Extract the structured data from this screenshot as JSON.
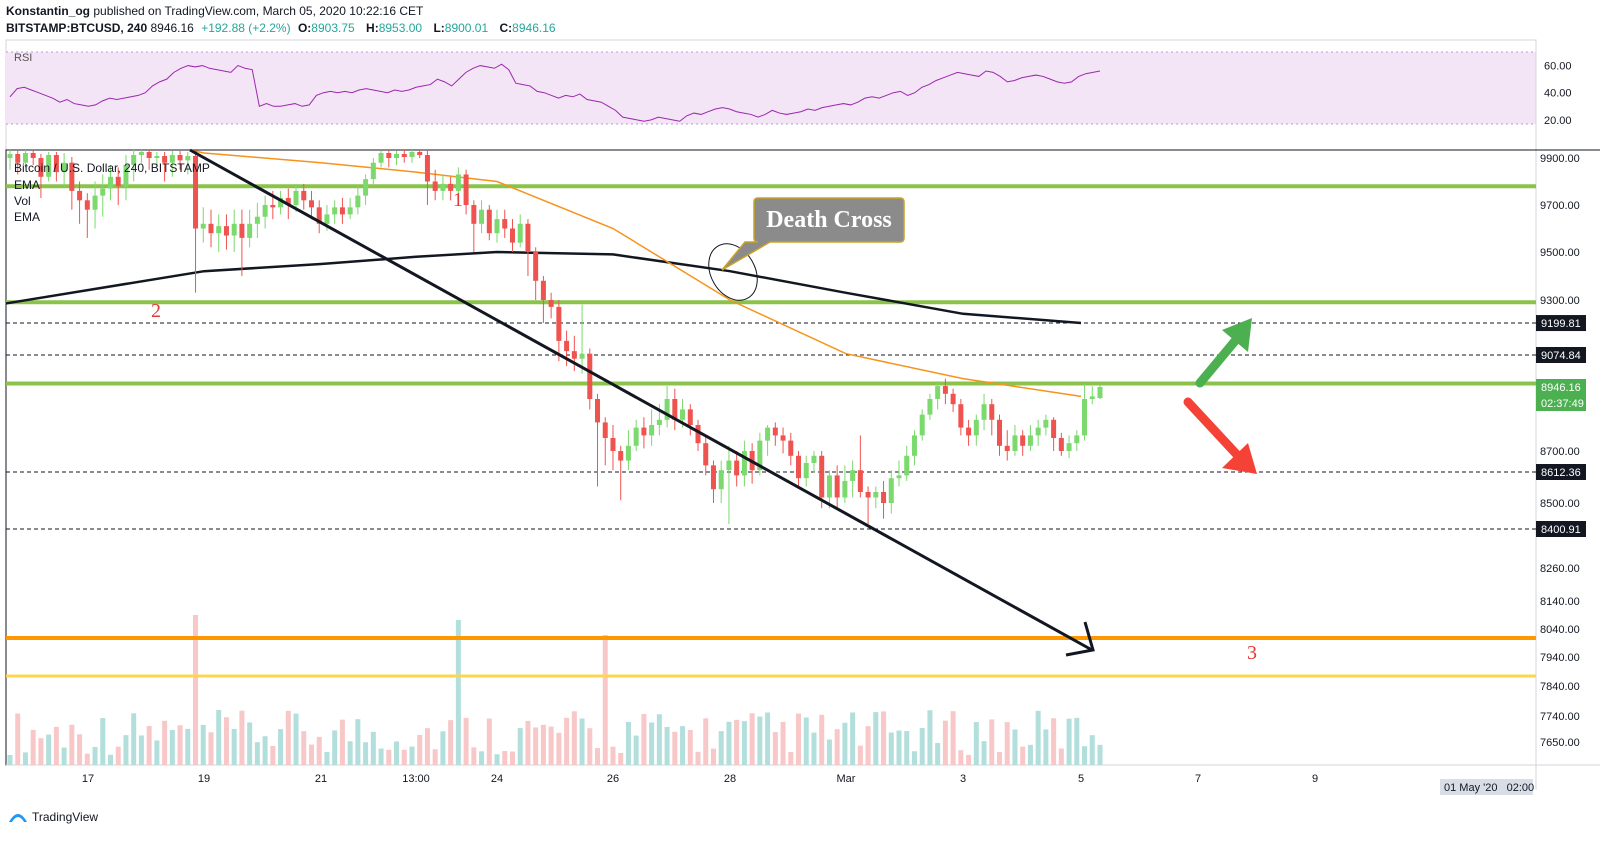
{
  "header": {
    "author": "Konstantin_og",
    "published": "published on TradingView.com, March 05, 2020 10:22:16 CET",
    "symbol": "BITSTAMP:BTCUSD, 240",
    "last": "8946.16",
    "change": "+192.88 (+2.2%)",
    "o_label": "O:",
    "o": "8903.75",
    "h_label": "H:",
    "h": "8953.00",
    "l_label": "L:",
    "l": "8900.01",
    "c_label": "C:",
    "c": "8946.16"
  },
  "rsi_label": "RSI",
  "rsi_ticks": [
    "60.00",
    "40.00",
    "20.00"
  ],
  "legend": [
    "Bitcoin / U.S. Dollar, 240, BITSTAMP",
    "EMA",
    "Vol",
    "EMA"
  ],
  "price_ticks": [
    "9900.00",
    "9700.00",
    "9500.00",
    "9300.00",
    "8700.00",
    "8500.00",
    "8260.00",
    "8140.00",
    "8040.00",
    "7940.00",
    "7840.00",
    "7740.00",
    "7650.00"
  ],
  "price_badges": {
    "ema_200": "9199.81",
    "resistance": "9074.84",
    "last": "8946.16",
    "countdown": "02:37:49",
    "support_1": "8612.36",
    "support_2": "8400.91"
  },
  "x_ticks": [
    "17",
    "19",
    "21",
    "13:00",
    "24",
    "26",
    "28",
    "Mar",
    "3",
    "5",
    "7",
    "9"
  ],
  "date_box": "01 May '20   02:00",
  "annotations": {
    "death_cross": "Death Cross",
    "mark_1": "1",
    "mark_2": "2",
    "mark_3": "3"
  },
  "branding": "TradingView",
  "colors": {
    "up": "#26a69a",
    "up_candle": "#7bd96e",
    "down": "#ef5350",
    "ema_orange": "#f7931a",
    "ema_black": "#131722",
    "level_green": "#8bc34a",
    "level_orange": "#ff9800",
    "level_yellow": "#ffd54f",
    "rsi_band": "#f3e5f5",
    "rsi_line": "#9c27b0",
    "arrow_green": "#4caf50",
    "arrow_red": "#f44336"
  },
  "chart_data": {
    "type": "candlestick",
    "symbol": "BITSTAMP:BTCUSD",
    "interval": "240",
    "price_range": [
      7600,
      9980
    ],
    "horizontal_levels": [
      9780,
      9290,
      9074.84,
      8960,
      8612.36,
      8400.91,
      8000,
      7870
    ],
    "ema_fast": [
      {
        "x": "start",
        "y": 9960
      },
      {
        "x": "19",
        "y": 9950
      },
      {
        "x": "21",
        "y": 9880
      },
      {
        "x": "13:00",
        "y": 9840
      },
      {
        "x": "24",
        "y": 9800
      },
      {
        "x": "26",
        "y": 9600
      },
      {
        "x": "28",
        "y": 9300
      },
      {
        "x": "Mar",
        "y": 9080
      },
      {
        "x": "3",
        "y": 8980
      },
      {
        "x": "5",
        "y": 8910
      }
    ],
    "ema_slow": [
      {
        "x": "start",
        "y": 9285
      },
      {
        "x": "19",
        "y": 9420
      },
      {
        "x": "21",
        "y": 9450
      },
      {
        "x": "13:00",
        "y": 9480
      },
      {
        "x": "24",
        "y": 9500
      },
      {
        "x": "26",
        "y": 9490
      },
      {
        "x": "28",
        "y": 9420
      },
      {
        "x": "Mar",
        "y": 9330
      },
      {
        "x": "3",
        "y": 9240
      },
      {
        "x": "5",
        "y": 9200
      }
    ],
    "candles": [
      {
        "o": 9900,
        "c": 9940,
        "h": 9980,
        "l": 9850
      },
      {
        "o": 9940,
        "c": 9880,
        "h": 9970,
        "l": 9830
      },
      {
        "o": 9880,
        "c": 9950,
        "h": 9980,
        "l": 9860
      },
      {
        "o": 9950,
        "c": 9900,
        "h": 9980,
        "l": 9870
      },
      {
        "o": 9900,
        "c": 9820,
        "h": 9940,
        "l": 9730
      },
      {
        "o": 9820,
        "c": 9930,
        "h": 9960,
        "l": 9800
      },
      {
        "o": 9930,
        "c": 9840,
        "h": 9960,
        "l": 9800
      },
      {
        "o": 9840,
        "c": 9880,
        "h": 9950,
        "l": 9780
      },
      {
        "o": 9880,
        "c": 9760,
        "h": 9910,
        "l": 9680
      },
      {
        "o": 9760,
        "c": 9720,
        "h": 9800,
        "l": 9620
      },
      {
        "o": 9720,
        "c": 9680,
        "h": 9750,
        "l": 9560
      },
      {
        "o": 9680,
        "c": 9740,
        "h": 9800,
        "l": 9600
      },
      {
        "o": 9740,
        "c": 9770,
        "h": 9830,
        "l": 9650
      },
      {
        "o": 9770,
        "c": 9820,
        "h": 9870,
        "l": 9720
      },
      {
        "o": 9820,
        "c": 9780,
        "h": 9860,
        "l": 9700
      },
      {
        "o": 9780,
        "c": 9870,
        "h": 9930,
        "l": 9720
      },
      {
        "o": 9870,
        "c": 9930,
        "h": 9980,
        "l": 9800
      },
      {
        "o": 9930,
        "c": 9960,
        "h": 9980,
        "l": 9880
      },
      {
        "o": 9960,
        "c": 9900,
        "h": 9980,
        "l": 9850
      },
      {
        "o": 9900,
        "c": 9920,
        "h": 9960,
        "l": 9860
      },
      {
        "o": 9920,
        "c": 9880,
        "h": 9960,
        "l": 9800
      },
      {
        "o": 9880,
        "c": 9930,
        "h": 9970,
        "l": 9820
      },
      {
        "o": 9930,
        "c": 9890,
        "h": 9970,
        "l": 9850
      },
      {
        "o": 9890,
        "c": 9920,
        "h": 9960,
        "l": 9830
      },
      {
        "o": 9920,
        "c": 9600,
        "h": 9980,
        "l": 9330
      },
      {
        "o": 9600,
        "c": 9620,
        "h": 9690,
        "l": 9540
      },
      {
        "o": 9620,
        "c": 9580,
        "h": 9680,
        "l": 9520
      },
      {
        "o": 9580,
        "c": 9610,
        "h": 9660,
        "l": 9500
      },
      {
        "o": 9610,
        "c": 9570,
        "h": 9660,
        "l": 9510
      },
      {
        "o": 9570,
        "c": 9620,
        "h": 9680,
        "l": 9500
      },
      {
        "o": 9620,
        "c": 9560,
        "h": 9680,
        "l": 9400
      },
      {
        "o": 9560,
        "c": 9620,
        "h": 9680,
        "l": 9520
      },
      {
        "o": 9620,
        "c": 9650,
        "h": 9710,
        "l": 9560
      },
      {
        "o": 9650,
        "c": 9700,
        "h": 9740,
        "l": 9600
      },
      {
        "o": 9700,
        "c": 9690,
        "h": 9760,
        "l": 9640
      },
      {
        "o": 9690,
        "c": 9730,
        "h": 9760,
        "l": 9660
      },
      {
        "o": 9730,
        "c": 9700,
        "h": 9770,
        "l": 9640
      },
      {
        "o": 9700,
        "c": 9760,
        "h": 9790,
        "l": 9670
      },
      {
        "o": 9760,
        "c": 9720,
        "h": 9790,
        "l": 9680
      },
      {
        "o": 9720,
        "c": 9690,
        "h": 9760,
        "l": 9640
      },
      {
        "o": 9690,
        "c": 9620,
        "h": 9720,
        "l": 9580
      },
      {
        "o": 9620,
        "c": 9660,
        "h": 9700,
        "l": 9590
      },
      {
        "o": 9660,
        "c": 9690,
        "h": 9720,
        "l": 9620
      },
      {
        "o": 9690,
        "c": 9660,
        "h": 9730,
        "l": 9620
      },
      {
        "o": 9660,
        "c": 9690,
        "h": 9730,
        "l": 9640
      },
      {
        "o": 9690,
        "c": 9740,
        "h": 9780,
        "l": 9660
      },
      {
        "o": 9740,
        "c": 9810,
        "h": 9830,
        "l": 9700
      },
      {
        "o": 9810,
        "c": 9880,
        "h": 9900,
        "l": 9780
      },
      {
        "o": 9880,
        "c": 9950,
        "h": 9970,
        "l": 9860
      },
      {
        "o": 9950,
        "c": 9900,
        "h": 9980,
        "l": 9860
      },
      {
        "o": 9900,
        "c": 9940,
        "h": 9970,
        "l": 9870
      },
      {
        "o": 9940,
        "c": 9910,
        "h": 9980,
        "l": 9880
      },
      {
        "o": 9910,
        "c": 9960,
        "h": 9980,
        "l": 9880
      },
      {
        "o": 9960,
        "c": 9930,
        "h": 9980,
        "l": 9900
      },
      {
        "o": 9930,
        "c": 9800,
        "h": 9980,
        "l": 9700
      },
      {
        "o": 9800,
        "c": 9760,
        "h": 9850,
        "l": 9720
      },
      {
        "o": 9760,
        "c": 9790,
        "h": 9830,
        "l": 9720
      },
      {
        "o": 9790,
        "c": 9760,
        "h": 9820,
        "l": 9720
      },
      {
        "o": 9760,
        "c": 9830,
        "h": 9860,
        "l": 9700
      },
      {
        "o": 9830,
        "c": 9700,
        "h": 9850,
        "l": 9660
      },
      {
        "o": 9700,
        "c": 9620,
        "h": 9720,
        "l": 9500
      },
      {
        "o": 9620,
        "c": 9680,
        "h": 9720,
        "l": 9580
      },
      {
        "o": 9680,
        "c": 9580,
        "h": 9700,
        "l": 9550
      },
      {
        "o": 9580,
        "c": 9640,
        "h": 9680,
        "l": 9540
      },
      {
        "o": 9640,
        "c": 9600,
        "h": 9680,
        "l": 9560
      },
      {
        "o": 9600,
        "c": 9540,
        "h": 9640,
        "l": 9500
      },
      {
        "o": 9540,
        "c": 9620,
        "h": 9660,
        "l": 9520
      },
      {
        "o": 9620,
        "c": 9500,
        "h": 9640,
        "l": 9400
      },
      {
        "o": 9500,
        "c": 9380,
        "h": 9520,
        "l": 9300
      },
      {
        "o": 9380,
        "c": 9300,
        "h": 9400,
        "l": 9200
      },
      {
        "o": 9300,
        "c": 9270,
        "h": 9330,
        "l": 9220
      },
      {
        "o": 9270,
        "c": 9130,
        "h": 9300,
        "l": 9050
      },
      {
        "o": 9130,
        "c": 9090,
        "h": 9170,
        "l": 9030
      },
      {
        "o": 9090,
        "c": 9060,
        "h": 9150,
        "l": 9010
      },
      {
        "o": 9060,
        "c": 9080,
        "h": 9280,
        "l": 9000
      },
      {
        "o": 9080,
        "c": 8900,
        "h": 9100,
        "l": 8860
      },
      {
        "o": 8900,
        "c": 8810,
        "h": 8920,
        "l": 8560
      },
      {
        "o": 8810,
        "c": 8750,
        "h": 8830,
        "l": 8640
      },
      {
        "o": 8750,
        "c": 8700,
        "h": 8800,
        "l": 8620
      },
      {
        "o": 8700,
        "c": 8660,
        "h": 8720,
        "l": 8510
      },
      {
        "o": 8660,
        "c": 8720,
        "h": 8780,
        "l": 8620
      },
      {
        "o": 8720,
        "c": 8790,
        "h": 8820,
        "l": 8700
      },
      {
        "o": 8790,
        "c": 8760,
        "h": 8830,
        "l": 8710
      },
      {
        "o": 8760,
        "c": 8800,
        "h": 8860,
        "l": 8720
      },
      {
        "o": 8800,
        "c": 8820,
        "h": 8880,
        "l": 8760
      },
      {
        "o": 8820,
        "c": 8900,
        "h": 8950,
        "l": 8790
      },
      {
        "o": 8900,
        "c": 8820,
        "h": 8940,
        "l": 8780
      },
      {
        "o": 8820,
        "c": 8860,
        "h": 8900,
        "l": 8790
      },
      {
        "o": 8860,
        "c": 8800,
        "h": 8880,
        "l": 8760
      },
      {
        "o": 8800,
        "c": 8730,
        "h": 8820,
        "l": 8700
      },
      {
        "o": 8730,
        "c": 8640,
        "h": 8760,
        "l": 8600
      },
      {
        "o": 8640,
        "c": 8550,
        "h": 8660,
        "l": 8500
      },
      {
        "o": 8550,
        "c": 8620,
        "h": 8660,
        "l": 8500
      },
      {
        "o": 8620,
        "c": 8660,
        "h": 8720,
        "l": 8420
      },
      {
        "o": 8660,
        "c": 8600,
        "h": 8700,
        "l": 8560
      },
      {
        "o": 8600,
        "c": 8700,
        "h": 8740,
        "l": 8560
      },
      {
        "o": 8700,
        "c": 8620,
        "h": 8730,
        "l": 8570
      },
      {
        "o": 8620,
        "c": 8740,
        "h": 8770,
        "l": 8600
      },
      {
        "o": 8740,
        "c": 8790,
        "h": 8800,
        "l": 8680
      },
      {
        "o": 8790,
        "c": 8760,
        "h": 8810,
        "l": 8720
      },
      {
        "o": 8760,
        "c": 8740,
        "h": 8790,
        "l": 8690
      },
      {
        "o": 8740,
        "c": 8680,
        "h": 8770,
        "l": 8640
      },
      {
        "o": 8680,
        "c": 8590,
        "h": 8700,
        "l": 8560
      },
      {
        "o": 8590,
        "c": 8650,
        "h": 8680,
        "l": 8560
      },
      {
        "o": 8650,
        "c": 8680,
        "h": 8700,
        "l": 8610
      },
      {
        "o": 8680,
        "c": 8520,
        "h": 8700,
        "l": 8480
      },
      {
        "o": 8520,
        "c": 8600,
        "h": 8620,
        "l": 8480
      },
      {
        "o": 8600,
        "c": 8520,
        "h": 8640,
        "l": 8480
      },
      {
        "o": 8520,
        "c": 8580,
        "h": 8640,
        "l": 8500
      },
      {
        "o": 8580,
        "c": 8620,
        "h": 8660,
        "l": 8520
      },
      {
        "o": 8620,
        "c": 8540,
        "h": 8760,
        "l": 8520
      },
      {
        "o": 8540,
        "c": 8520,
        "h": 8560,
        "l": 8420
      },
      {
        "o": 8520,
        "c": 8540,
        "h": 8560,
        "l": 8480
      },
      {
        "o": 8540,
        "c": 8500,
        "h": 8580,
        "l": 8440
      },
      {
        "o": 8500,
        "c": 8590,
        "h": 8620,
        "l": 8460
      },
      {
        "o": 8590,
        "c": 8600,
        "h": 8660,
        "l": 8560
      },
      {
        "o": 8600,
        "c": 8680,
        "h": 8720,
        "l": 8580
      },
      {
        "o": 8680,
        "c": 8760,
        "h": 8780,
        "l": 8640
      },
      {
        "o": 8760,
        "c": 8840,
        "h": 8860,
        "l": 8740
      },
      {
        "o": 8840,
        "c": 8900,
        "h": 8920,
        "l": 8820
      },
      {
        "o": 8900,
        "c": 8950,
        "h": 8970,
        "l": 8860
      },
      {
        "o": 8950,
        "c": 8920,
        "h": 8980,
        "l": 8880
      },
      {
        "o": 8920,
        "c": 8880,
        "h": 8940,
        "l": 8850
      },
      {
        "o": 8880,
        "c": 8790,
        "h": 8900,
        "l": 8760
      },
      {
        "o": 8790,
        "c": 8760,
        "h": 8820,
        "l": 8720
      },
      {
        "o": 8760,
        "c": 8820,
        "h": 8840,
        "l": 8720
      },
      {
        "o": 8820,
        "c": 8880,
        "h": 8920,
        "l": 8780
      },
      {
        "o": 8880,
        "c": 8820,
        "h": 8900,
        "l": 8760
      },
      {
        "o": 8820,
        "c": 8720,
        "h": 8840,
        "l": 8680
      },
      {
        "o": 8720,
        "c": 8700,
        "h": 8780,
        "l": 8660
      },
      {
        "o": 8700,
        "c": 8760,
        "h": 8800,
        "l": 8680
      },
      {
        "o": 8760,
        "c": 8720,
        "h": 8780,
        "l": 8680
      },
      {
        "o": 8720,
        "c": 8760,
        "h": 8800,
        "l": 8700
      },
      {
        "o": 8760,
        "c": 8790,
        "h": 8820,
        "l": 8720
      },
      {
        "o": 8790,
        "c": 8820,
        "h": 8840,
        "l": 8760
      },
      {
        "o": 8820,
        "c": 8750,
        "h": 8830,
        "l": 8700
      },
      {
        "o": 8750,
        "c": 8700,
        "h": 8770,
        "l": 8680
      },
      {
        "o": 8700,
        "c": 8730,
        "h": 8760,
        "l": 8670
      },
      {
        "o": 8730,
        "c": 8760,
        "h": 8780,
        "l": 8700
      },
      {
        "o": 8760,
        "c": 8900,
        "h": 8960,
        "l": 8740
      },
      {
        "o": 8900,
        "c": 8910,
        "h": 8950,
        "l": 8880
      },
      {
        "o": 8903.75,
        "c": 8946.16,
        "h": 8953,
        "l": 8900.01
      }
    ],
    "rsi": [
      37,
      43,
      44,
      42,
      40,
      38,
      36,
      33,
      35,
      32,
      31,
      30,
      31,
      34,
      36,
      35,
      36,
      37,
      38,
      40,
      45,
      48,
      50,
      55,
      58,
      60,
      59,
      60,
      58,
      57,
      56,
      55,
      60,
      58,
      57,
      30,
      32,
      30,
      30,
      31,
      32,
      30,
      31,
      38,
      40,
      41,
      40,
      41,
      40,
      42,
      43,
      42,
      41,
      40,
      42,
      41,
      42,
      44,
      45,
      46,
      50,
      48,
      45,
      50,
      55,
      58,
      60,
      59,
      58,
      61,
      57,
      47,
      46,
      45,
      41,
      40,
      38,
      36,
      38,
      37,
      39,
      35,
      34,
      33,
      30,
      27,
      22,
      21,
      20,
      19,
      20,
      22,
      21,
      20,
      19,
      23,
      25,
      24,
      26,
      28,
      29,
      28,
      26,
      25,
      24,
      22,
      24,
      27,
      25,
      24,
      25,
      26,
      28,
      27,
      29,
      30,
      31,
      32,
      31,
      33,
      36,
      37,
      36,
      38,
      40,
      41,
      38,
      40,
      44,
      46,
      49,
      51,
      53,
      55,
      54,
      53,
      52,
      56,
      55,
      52,
      48,
      49,
      51,
      52,
      53,
      52,
      50,
      48,
      47,
      48,
      52,
      54,
      55,
      56
    ]
  }
}
